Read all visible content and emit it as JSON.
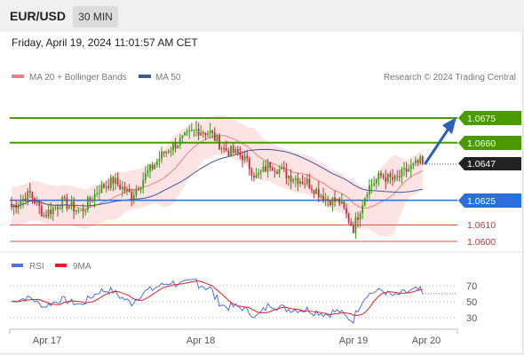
{
  "header": {
    "symbol": "EUR/USD",
    "timeframe_button": "30 MIN"
  },
  "datetime": "Friday, April 19, 2024 11:01:57 AM CET",
  "legend": {
    "ma20": {
      "label": "MA 20 + Bollinger Bands",
      "color": "#f08080"
    },
    "ma50": {
      "label": "MA 50",
      "color": "#3a5a9a"
    },
    "credit": "Research © 2024 Trading Central"
  },
  "levels": {
    "resistance2": "1.0675",
    "resistance1": "1.0660",
    "current": "1.0647",
    "pivot": "1.0625",
    "support1": "1.0610",
    "support2": "1.0600"
  },
  "rsi_legend": {
    "rsi": {
      "label": "RSI",
      "color": "#4a72d8"
    },
    "ma9": {
      "label": "9MA",
      "color": "#e0202a"
    }
  },
  "rsi_axis": [
    "70",
    "50",
    "30"
  ],
  "date_axis": [
    "Apr 17",
    "Apr 18",
    "Apr 19",
    "Apr 20"
  ],
  "colors": {
    "resistance": "#4a9a00",
    "pivot": "#2b6fdc",
    "support": "#e05050",
    "bull": "#3a9a1a",
    "bear": "#c0303a",
    "band": "#fde4e4"
  },
  "chart_data": {
    "type": "candlestick",
    "price_ylim": [
      1.06,
      1.0675
    ],
    "rsi_levels": [
      70,
      50,
      30
    ],
    "x_ticks": [
      "Apr 17",
      "Apr 18",
      "Apr 19",
      "Apr 20"
    ],
    "anchors": [
      [
        0,
        1.0621
      ],
      [
        8,
        1.0629
      ],
      [
        14,
        1.0616
      ],
      [
        22,
        1.0624
      ],
      [
        30,
        1.0618
      ],
      [
        38,
        1.0632
      ],
      [
        44,
        1.0637
      ],
      [
        52,
        1.0628
      ],
      [
        58,
        1.064
      ],
      [
        66,
        1.0654
      ],
      [
        72,
        1.066
      ],
      [
        80,
        1.0668
      ],
      [
        86,
        1.0666
      ],
      [
        92,
        1.0656
      ],
      [
        100,
        1.0652
      ],
      [
        106,
        1.0639
      ],
      [
        112,
        1.0647
      ],
      [
        120,
        1.064
      ],
      [
        128,
        1.0636
      ],
      [
        136,
        1.0626
      ],
      [
        142,
        1.0624
      ],
      [
        148,
        1.0608
      ],
      [
        154,
        1.0632
      ],
      [
        160,
        1.064
      ],
      [
        166,
        1.0637
      ],
      [
        171,
        1.0643
      ],
      [
        178,
        1.0649
      ]
    ],
    "n_candles": 179
  }
}
